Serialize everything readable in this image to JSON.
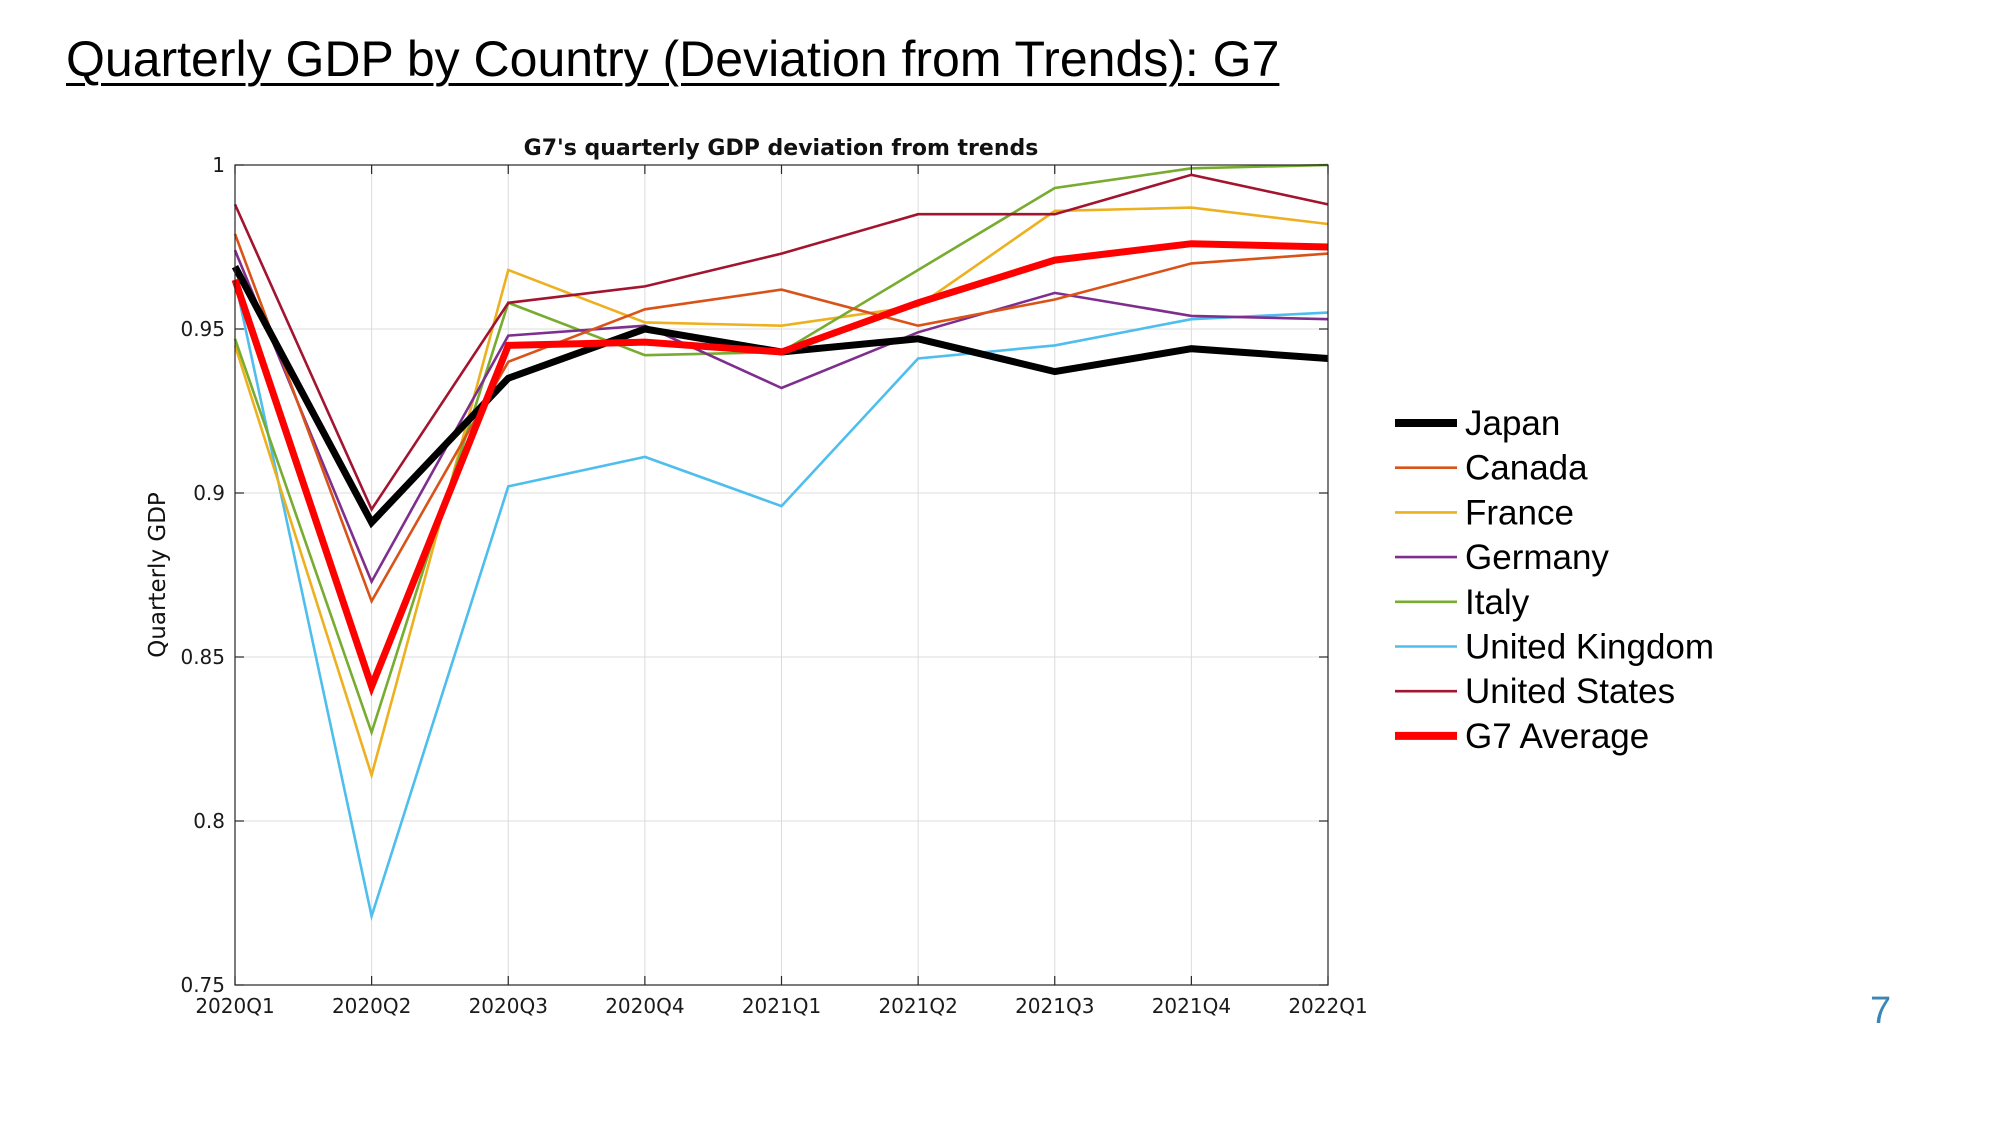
{
  "slide": {
    "title": "Quarterly GDP by Country (Deviation from Trends): G7",
    "page_number": "7"
  },
  "chart_data": {
    "type": "line",
    "title": "G7's quarterly GDP deviation from trends",
    "xlabel": "",
    "ylabel": "Quarterly GDP",
    "categories": [
      "2020Q1",
      "2020Q2",
      "2020Q3",
      "2020Q4",
      "2021Q1",
      "2021Q2",
      "2021Q3",
      "2021Q4",
      "2022Q1"
    ],
    "ylim": [
      0.75,
      1
    ],
    "yticks": [
      0.75,
      0.8,
      0.85,
      0.9,
      0.95,
      1
    ],
    "ytick_labels": [
      "0.75",
      "0.8",
      "0.85",
      "0.9",
      "0.95",
      "1"
    ],
    "grid": true,
    "legend_position": "outside-right",
    "series": [
      {
        "name": "United Kingdom",
        "color": "#4dbeee",
        "values": [
          0.965,
          0.771,
          0.902,
          0.911,
          0.896,
          0.941,
          0.945,
          0.953,
          0.955
        ]
      },
      {
        "name": "France",
        "color": "#edb120",
        "values": [
          0.945,
          0.814,
          0.968,
          0.952,
          0.951,
          0.957,
          0.986,
          0.987,
          0.982
        ]
      },
      {
        "name": "Italy",
        "color": "#77ac30",
        "values": [
          0.947,
          0.827,
          0.958,
          0.942,
          0.943,
          0.968,
          0.993,
          0.999,
          1.0
        ]
      },
      {
        "name": "Germany",
        "color": "#7e2f8e",
        "values": [
          0.974,
          0.873,
          0.948,
          0.951,
          0.932,
          0.949,
          0.961,
          0.954,
          0.953
        ]
      },
      {
        "name": "Canada",
        "color": "#d95319",
        "values": [
          0.979,
          0.867,
          0.94,
          0.956,
          0.962,
          0.951,
          0.959,
          0.97,
          0.973
        ]
      },
      {
        "name": "United States",
        "color": "#a2142f",
        "values": [
          0.988,
          0.895,
          0.958,
          0.963,
          0.973,
          0.985,
          0.985,
          0.997,
          0.988
        ]
      },
      {
        "name": "Japan",
        "color": "#000000",
        "values": [
          0.969,
          0.891,
          0.935,
          0.95,
          0.943,
          0.947,
          0.937,
          0.944,
          0.941
        ]
      },
      {
        "name": "G7 Average",
        "color": "#ff0000",
        "values": [
          0.965,
          0.841,
          0.945,
          0.946,
          0.943,
          0.958,
          0.971,
          0.976,
          0.975
        ]
      }
    ],
    "legend": [
      {
        "label": "Japan",
        "color": "#000000",
        "weight": "thick"
      },
      {
        "label": "Canada",
        "color": "#d95319",
        "weight": "thin"
      },
      {
        "label": "France",
        "color": "#edb120",
        "weight": "thin"
      },
      {
        "label": "Germany",
        "color": "#7e2f8e",
        "weight": "thin"
      },
      {
        "label": "Italy",
        "color": "#77ac30",
        "weight": "thin"
      },
      {
        "label": "United Kingdom",
        "color": "#4dbeee",
        "weight": "thin"
      },
      {
        "label": "United States",
        "color": "#a2142f",
        "weight": "thin"
      },
      {
        "label": "G7 Average",
        "color": "#ff0000",
        "weight": "thick"
      }
    ]
  }
}
